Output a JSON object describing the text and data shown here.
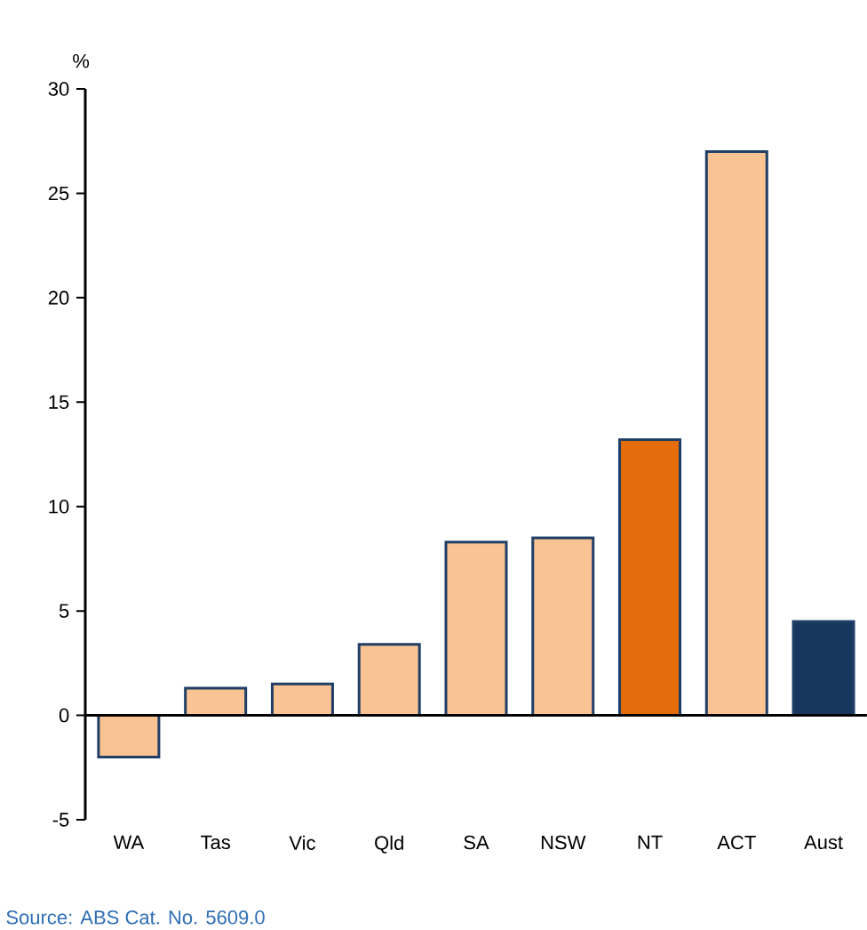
{
  "chart_data": {
    "type": "bar",
    "ylabel": "%",
    "categories": [
      "WA",
      "Tas",
      "Vic",
      "Qld",
      "SA",
      "NSW",
      "NT",
      "ACT",
      "Aust"
    ],
    "values": [
      -2.0,
      1.3,
      1.5,
      3.4,
      8.3,
      8.5,
      13.2,
      27.0,
      4.5
    ],
    "colors": [
      "#f9c393",
      "#f9c393",
      "#f9c393",
      "#f9c393",
      "#f9c393",
      "#f9c393",
      "#e46c0a",
      "#f9c393",
      "#17375e"
    ],
    "ylim": [
      -5,
      30
    ],
    "yticks": [
      -5,
      0,
      5,
      10,
      15,
      20,
      25,
      30
    ],
    "annotations": [
      "Source: ABS Cat. No. 5609.0"
    ]
  }
}
